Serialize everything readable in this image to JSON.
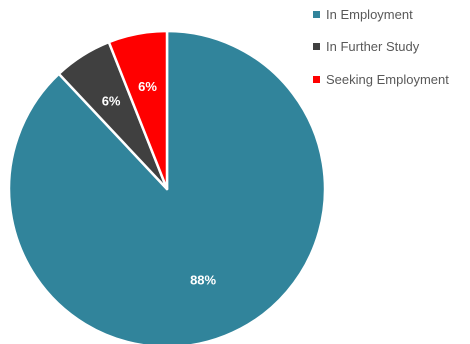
{
  "chart_data": {
    "type": "pie",
    "title": "",
    "categories": [
      "In Employment",
      "In Further Study",
      "Seeking Employment"
    ],
    "values": [
      88,
      6,
      6
    ],
    "value_labels": [
      "88%",
      "6%",
      "6%"
    ],
    "colors": [
      "#31849B",
      "#404040",
      "#FF0000"
    ],
    "label_color": "#FFFFFF",
    "slice_border_color": "#FFFFFF",
    "start_angle_deg": 0,
    "direction": "clockwise",
    "legend": {
      "placement": "top-right",
      "items": [
        {
          "label": "In Employment",
          "color": "#31849B"
        },
        {
          "label": "In Further Study",
          "color": "#404040"
        },
        {
          "label": "Seeking Employment",
          "color": "#FF0000"
        }
      ]
    }
  }
}
